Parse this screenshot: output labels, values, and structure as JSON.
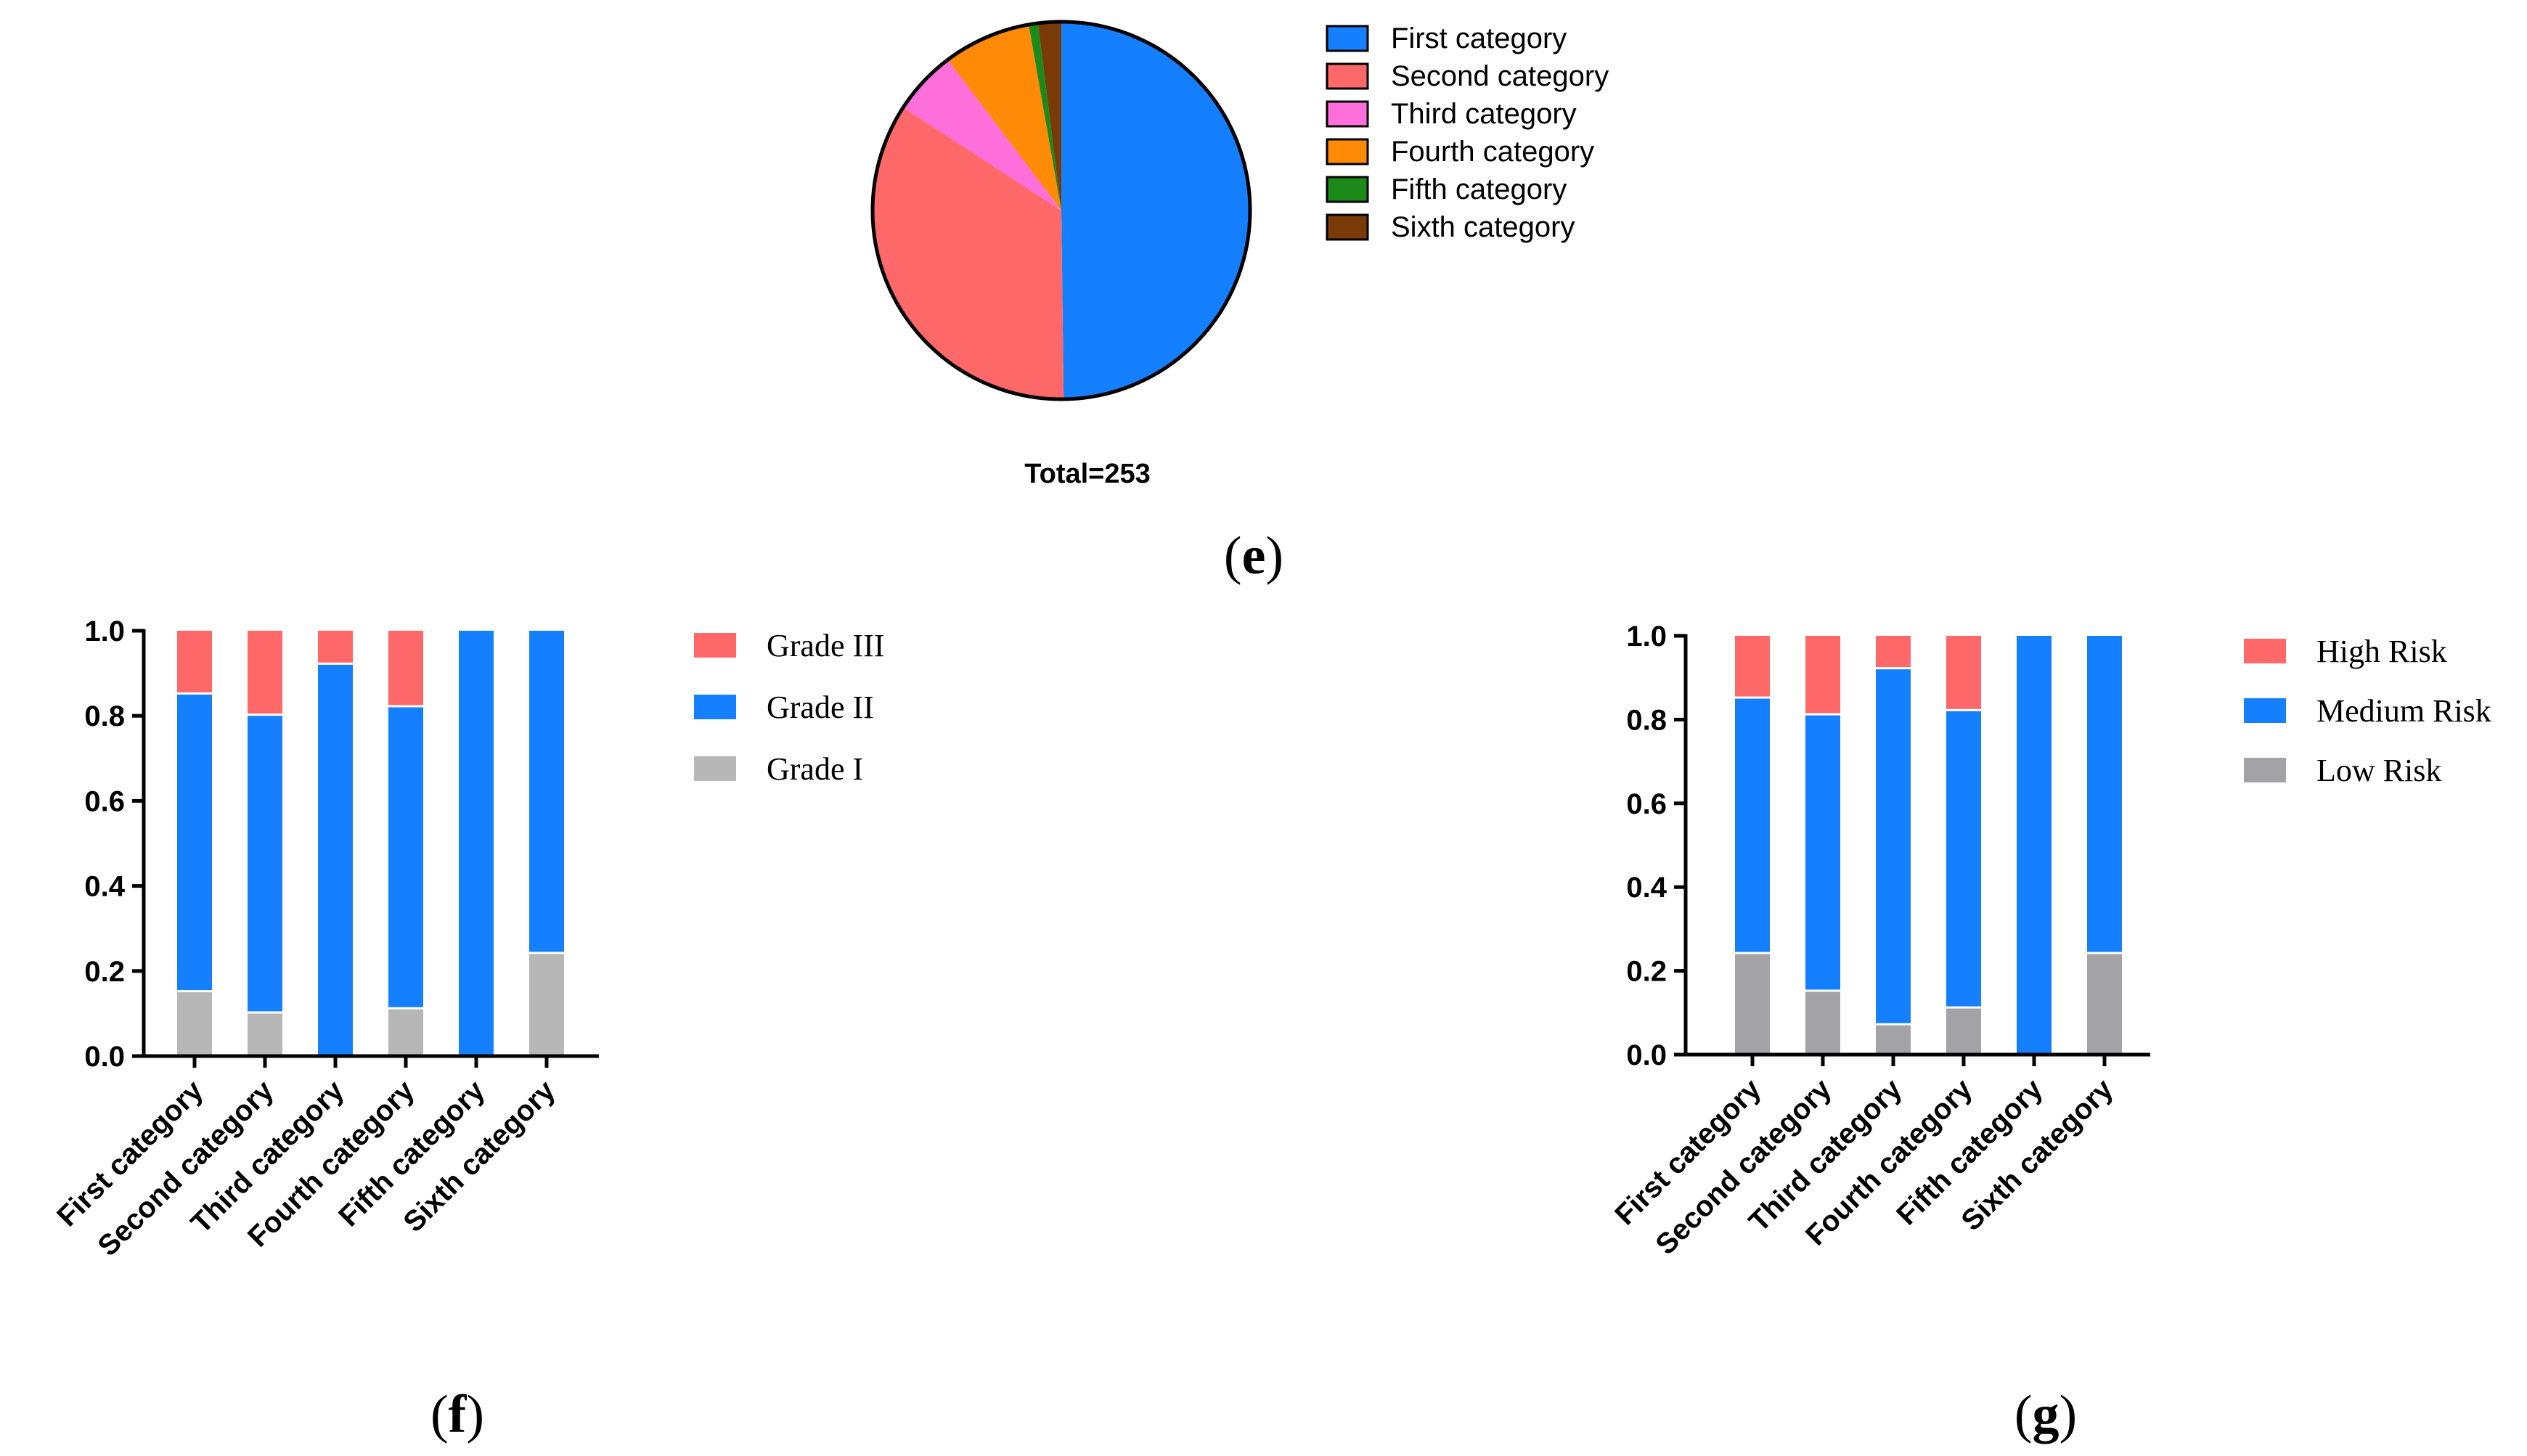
{
  "colors": {
    "blue": "#1580ff",
    "red": "#ff6868",
    "pink": "#ff6fdc",
    "orange": "#ff8a05",
    "green": "#1b8a18",
    "brown": "#7a3a08",
    "light_gray": "#b7b7b7",
    "gray": "#a3a3a7"
  },
  "panels": {
    "e_label": "e",
    "f_label": "f",
    "g_label": "g"
  },
  "chart_data": [
    {
      "id": "e",
      "type": "pie",
      "title": "",
      "total_label": "Total=253",
      "legend_position": "right",
      "categories": [
        "First category",
        "Second category",
        "Third category",
        "Fourth category",
        "Fifth category",
        "Sixth category"
      ],
      "values": [
        126,
        87,
        14,
        19,
        2,
        5
      ],
      "colors": [
        "#1580ff",
        "#ff6868",
        "#ff6fdc",
        "#ff8a05",
        "#1b8a18",
        "#7a3a08"
      ]
    },
    {
      "id": "f",
      "type": "bar",
      "stacked": true,
      "categories": [
        "First category",
        "Second category",
        "Third category",
        "Fourth category",
        "Fifth category",
        "Sixth category"
      ],
      "series": [
        {
          "name": "Grade I",
          "color": "#b7b7b7",
          "values": [
            0.15,
            0.1,
            0.0,
            0.11,
            0.0,
            0.24
          ]
        },
        {
          "name": "Grade II",
          "color": "#1580ff",
          "values": [
            0.7,
            0.7,
            0.92,
            0.71,
            1.0,
            0.76
          ]
        },
        {
          "name": "Grade III",
          "color": "#ff6868",
          "values": [
            0.15,
            0.2,
            0.08,
            0.18,
            0.0,
            0.0
          ]
        }
      ],
      "legend": [
        "Grade III",
        "Grade II",
        "Grade I"
      ],
      "legend_position": "right",
      "ylim": [
        0,
        1.0
      ],
      "yticks": [
        "0.0",
        "0.2",
        "0.4",
        "0.6",
        "0.8",
        "1.0"
      ],
      "xlabel": "",
      "ylabel": ""
    },
    {
      "id": "g",
      "type": "bar",
      "stacked": true,
      "categories": [
        "First category",
        "Second category",
        "Third category",
        "Fourth category",
        "Fifth category",
        "Sixth category"
      ],
      "series": [
        {
          "name": "Low Risk",
          "color": "#a3a3a7",
          "values": [
            0.24,
            0.15,
            0.07,
            0.11,
            0.0,
            0.24
          ]
        },
        {
          "name": "Medium Risk",
          "color": "#1580ff",
          "values": [
            0.61,
            0.66,
            0.85,
            0.71,
            1.0,
            0.76
          ]
        },
        {
          "name": "High Risk",
          "color": "#ff6868",
          "values": [
            0.15,
            0.19,
            0.08,
            0.18,
            0.0,
            0.0
          ]
        }
      ],
      "legend": [
        "High Risk",
        "Medium Risk",
        "Low Risk"
      ],
      "legend_position": "right",
      "ylim": [
        0,
        1.0
      ],
      "yticks": [
        "0.0",
        "0.2",
        "0.4",
        "0.6",
        "0.8",
        "1.0"
      ],
      "xlabel": "",
      "ylabel": ""
    }
  ]
}
